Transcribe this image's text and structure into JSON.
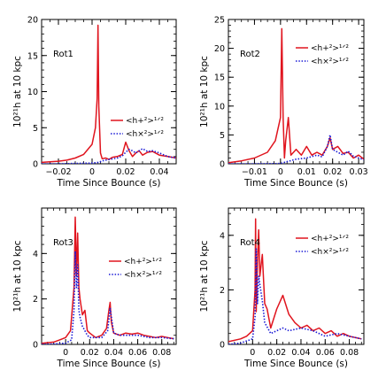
{
  "colors": {
    "plus": "#e0141e",
    "cross": "#1a1ad6",
    "axis": "#000000"
  },
  "chart_data": [
    {
      "type": "line",
      "panel_label": "Rot1",
      "xlabel": "Time Since Bounce (s)",
      "ylabel": "10²¹h at 10 kpc",
      "xlim": [
        -0.03,
        0.05
      ],
      "ylim": [
        0,
        20
      ],
      "xticks": [
        -0.02,
        0,
        0.02,
        0.04
      ],
      "xtick_labels": [
        "−0.02",
        "0",
        "0.02",
        "0.04"
      ],
      "yticks": [
        0,
        5,
        10,
        15,
        20
      ],
      "ytick_labels": [
        "0",
        "5",
        "10",
        "15",
        "20"
      ],
      "legend": {
        "placement": "center-right",
        "plus_label": "<h+²>¹ᐟ²",
        "cross_label": "<h×²>¹ᐟ²"
      },
      "series": [
        {
          "key": "plus",
          "style": "solid",
          "x": [
            -0.03,
            -0.02,
            -0.015,
            -0.01,
            -0.005,
            0,
            0.002,
            0.003,
            0.0035,
            0.004,
            0.005,
            0.006,
            0.008,
            0.01,
            0.012,
            0.015,
            0.018,
            0.02,
            0.022,
            0.024,
            0.026,
            0.028,
            0.03,
            0.033,
            0.036,
            0.04,
            0.045,
            0.05
          ],
          "y": [
            0.2,
            0.35,
            0.5,
            0.8,
            1.3,
            2.7,
            5,
            9,
            19.2,
            8,
            1.5,
            0.7,
            0.8,
            0.6,
            0.9,
            1,
            1.3,
            3,
            1.8,
            1,
            1.5,
            1.8,
            1.2,
            1.6,
            1.7,
            1.2,
            1,
            0.8
          ]
        },
        {
          "key": "cross",
          "style": "dotted",
          "x": [
            -0.03,
            -0.02,
            -0.01,
            0,
            0.004,
            0.006,
            0.01,
            0.015,
            0.018,
            0.02,
            0.022,
            0.024,
            0.026,
            0.028,
            0.03,
            0.033,
            0.036,
            0.04,
            0.045,
            0.05
          ],
          "y": [
            0,
            0,
            0.05,
            0.1,
            0.2,
            0.4,
            0.6,
            0.8,
            1.1,
            1.6,
            2,
            1.8,
            1.5,
            1.8,
            2.1,
            1.7,
            1.8,
            1.5,
            1,
            0.8
          ]
        }
      ]
    },
    {
      "type": "line",
      "panel_label": "Rot2",
      "xlabel": "Time Since Bounce (s)",
      "ylabel": "10²¹h at 10 kpc",
      "xlim": [
        -0.02,
        0.032
      ],
      "ylim": [
        0,
        25
      ],
      "xticks": [
        -0.01,
        0,
        0.01,
        0.02,
        0.03
      ],
      "xtick_labels": [
        "−0.01",
        "0",
        "0.01",
        "0.02",
        "0.03"
      ],
      "yticks": [
        0,
        5,
        10,
        15,
        20,
        25
      ],
      "ytick_labels": [
        "0",
        "5",
        "10",
        "15",
        "20",
        "25"
      ],
      "legend": {
        "placement": "top-right",
        "plus_label": "<h+²>¹ᐟ²",
        "cross_label": "<h×²>¹ᐟ²"
      },
      "series": [
        {
          "key": "plus",
          "style": "solid",
          "x": [
            -0.02,
            -0.015,
            -0.01,
            -0.005,
            -0.002,
            0,
            0.0005,
            0.001,
            0.0015,
            0.002,
            0.003,
            0.004,
            0.006,
            0.008,
            0.01,
            0.012,
            0.014,
            0.016,
            0.018,
            0.019,
            0.02,
            0.022,
            0.024,
            0.026,
            0.028,
            0.03,
            0.032
          ],
          "y": [
            0.2,
            0.5,
            1,
            2,
            4,
            8,
            23.4,
            8,
            1,
            4,
            8,
            1.5,
            2.5,
            1.5,
            3,
            1.5,
            2,
            1.5,
            3,
            4.5,
            2.5,
            3,
            1.8,
            2,
            1,
            1.5,
            0.8
          ]
        },
        {
          "key": "cross",
          "style": "dotted",
          "x": [
            -0.02,
            -0.01,
            0,
            0.002,
            0.006,
            0.01,
            0.014,
            0.016,
            0.018,
            0.019,
            0.02,
            0.022,
            0.024,
            0.026,
            0.028,
            0.03,
            0.032
          ],
          "y": [
            0,
            0,
            0.05,
            0.3,
            0.8,
            1,
            1.5,
            1.2,
            3,
            5,
            2.5,
            2,
            1.5,
            2.2,
            1.3,
            1,
            0.7
          ]
        }
      ]
    },
    {
      "type": "line",
      "panel_label": "Rot3",
      "xlabel": "Time Since Bounce (s)",
      "ylabel": "10²¹h at 10 kpc",
      "xlim": [
        -0.02,
        0.092
      ],
      "ylim": [
        0,
        6
      ],
      "xticks": [
        0,
        0.02,
        0.04,
        0.06,
        0.08
      ],
      "xtick_labels": [
        "0",
        "0.02",
        "0.04",
        "0.06",
        "0.08"
      ],
      "yticks": [
        0,
        2,
        4
      ],
      "ytick_labels": [
        "0",
        "2",
        "4"
      ],
      "legend": {
        "placement": "center-right",
        "plus_label": "<h+²>¹ᐟ²",
        "cross_label": "<h×²>¹ᐟ²"
      },
      "series": [
        {
          "key": "plus",
          "style": "solid",
          "x": [
            -0.02,
            -0.01,
            -0.005,
            0,
            0.004,
            0.007,
            0.008,
            0.009,
            0.01,
            0.011,
            0.012,
            0.014,
            0.016,
            0.018,
            0.02,
            0.025,
            0.03,
            0.034,
            0.036,
            0.037,
            0.038,
            0.04,
            0.045,
            0.05,
            0.055,
            0.06,
            0.065,
            0.07,
            0.075,
            0.08,
            0.085,
            0.09
          ],
          "y": [
            0.05,
            0.1,
            0.2,
            0.3,
            0.6,
            2.5,
            5.6,
            3,
            4.9,
            2.5,
            2,
            1.3,
            1.5,
            0.6,
            0.5,
            0.3,
            0.4,
            0.7,
            1.5,
            1.85,
            1,
            0.5,
            0.4,
            0.5,
            0.45,
            0.5,
            0.4,
            0.35,
            0.3,
            0.35,
            0.3,
            0.25
          ]
        },
        {
          "key": "cross",
          "style": "dotted",
          "x": [
            -0.02,
            -0.01,
            0,
            0.005,
            0.007,
            0.008,
            0.009,
            0.01,
            0.011,
            0.012,
            0.014,
            0.016,
            0.018,
            0.02,
            0.025,
            0.03,
            0.035,
            0.037,
            0.04,
            0.045,
            0.05,
            0.06,
            0.07,
            0.08,
            0.09
          ],
          "y": [
            0,
            0.02,
            0.05,
            0.2,
            1.5,
            4.1,
            2.5,
            3.5,
            1.5,
            1.2,
            0.8,
            0.6,
            0.4,
            0.3,
            0.3,
            0.3,
            0.6,
            1.6,
            0.5,
            0.4,
            0.4,
            0.4,
            0.3,
            0.3,
            0.25
          ]
        }
      ]
    },
    {
      "type": "line",
      "panel_label": "Rot4",
      "xlabel": "Time Since Bounce (s)",
      "ylabel": "10²¹h at 10 kpc",
      "xlim": [
        -0.02,
        0.092
      ],
      "ylim": [
        0,
        5
      ],
      "xticks": [
        0,
        0.02,
        0.04,
        0.06,
        0.08
      ],
      "xtick_labels": [
        "0",
        "0.02",
        "0.04",
        "0.06",
        "0.08"
      ],
      "yticks": [
        0,
        2,
        4
      ],
      "ytick_labels": [
        "0",
        "2",
        "4"
      ],
      "legend": {
        "placement": "top-right",
        "plus_label": "<h+²>¹ᐟ²",
        "cross_label": "<h×²>¹ᐟ²"
      },
      "series": [
        {
          "key": "plus",
          "style": "solid",
          "x": [
            -0.02,
            -0.01,
            -0.005,
            0,
            0.002,
            0.0025,
            0.003,
            0.004,
            0.005,
            0.006,
            0.008,
            0.01,
            0.012,
            0.015,
            0.02,
            0.025,
            0.03,
            0.035,
            0.04,
            0.045,
            0.05,
            0.055,
            0.06,
            0.065,
            0.07,
            0.075,
            0.08,
            0.085,
            0.09
          ],
          "y": [
            0.1,
            0.2,
            0.3,
            0.5,
            2,
            4.6,
            1.2,
            3,
            4.2,
            2.5,
            3.3,
            1.5,
            1.3,
            0.6,
            1.3,
            1.8,
            1.1,
            0.8,
            0.6,
            0.7,
            0.5,
            0.6,
            0.4,
            0.5,
            0.3,
            0.4,
            0.3,
            0.25,
            0.2
          ]
        },
        {
          "key": "cross",
          "style": "dotted",
          "x": [
            -0.02,
            -0.01,
            0,
            0.002,
            0.003,
            0.004,
            0.005,
            0.006,
            0.008,
            0.01,
            0.015,
            0.02,
            0.025,
            0.03,
            0.04,
            0.05,
            0.06,
            0.07,
            0.08,
            0.09
          ],
          "y": [
            0,
            0.05,
            0.2,
            1,
            3.5,
            1.5,
            2.5,
            2.2,
            1.6,
            0.8,
            0.4,
            0.5,
            0.6,
            0.5,
            0.6,
            0.5,
            0.3,
            0.4,
            0.3,
            0.2
          ]
        }
      ]
    }
  ]
}
